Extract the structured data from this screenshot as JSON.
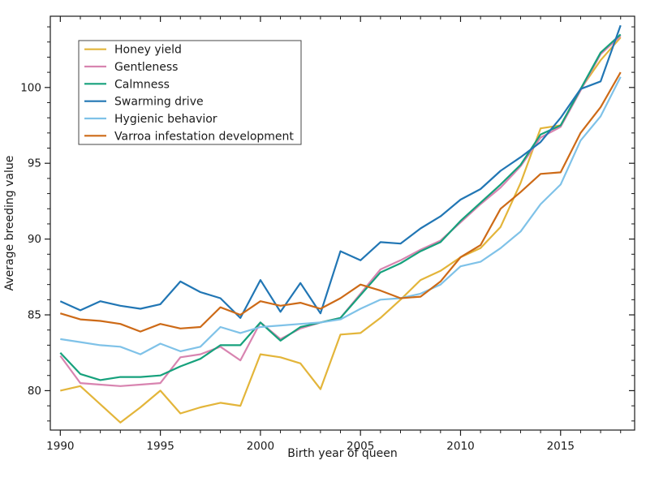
{
  "chart_data": {
    "type": "line",
    "title": "",
    "xlabel": "Birth year of queen",
    "ylabel": "Average breeding value",
    "xlim": [
      1989.5,
      2018.7
    ],
    "ylim": [
      77.4,
      104.7
    ],
    "grid": false,
    "legend_position": "upper-left",
    "frame_color": "#1a1a1a",
    "background_color": "#ffffff",
    "xticks_major": [
      1990,
      1995,
      2000,
      2005,
      2010,
      2015
    ],
    "yticks_major": [
      80,
      85,
      90,
      95,
      100
    ],
    "minor_x_step": 1,
    "minor_y_step": 1,
    "x": [
      1990,
      1991,
      1992,
      1993,
      1994,
      1995,
      1996,
      1997,
      1998,
      1999,
      2000,
      2001,
      2002,
      2003,
      2004,
      2005,
      2006,
      2007,
      2008,
      2009,
      2010,
      2011,
      2012,
      2013,
      2014,
      2015,
      2016,
      2017,
      2018
    ],
    "series": [
      {
        "name": "Honey yield",
        "color": "#E3B53A",
        "values": [
          80.0,
          80.3,
          79.1,
          77.9,
          78.9,
          80.0,
          78.5,
          78.9,
          79.2,
          79.0,
          82.4,
          82.2,
          81.8,
          80.1,
          83.7,
          83.8,
          84.8,
          86.0,
          87.3,
          87.9,
          88.8,
          89.4,
          90.8,
          93.7,
          97.3,
          97.5,
          99.9,
          101.8,
          103.3
        ]
      },
      {
        "name": "Gentleness",
        "color": "#D884B0",
        "values": [
          82.3,
          80.5,
          80.4,
          80.3,
          80.4,
          80.5,
          82.2,
          82.4,
          82.9,
          82.0,
          84.5,
          83.4,
          84.1,
          84.5,
          84.8,
          86.4,
          88.0,
          88.6,
          89.3,
          89.9,
          91.1,
          92.3,
          93.4,
          94.8,
          96.7,
          97.4,
          99.8,
          102.2,
          103.4
        ]
      },
      {
        "name": "Calmness",
        "color": "#16A17C",
        "values": [
          82.5,
          81.1,
          80.7,
          80.9,
          80.9,
          81.0,
          81.6,
          82.1,
          83.0,
          83.0,
          84.5,
          83.3,
          84.2,
          84.5,
          84.8,
          86.3,
          87.8,
          88.4,
          89.2,
          89.8,
          91.2,
          92.4,
          93.6,
          94.9,
          96.9,
          97.5,
          99.9,
          102.3,
          103.5
        ]
      },
      {
        "name": "Swarming drive",
        "color": "#2176B4",
        "values": [
          85.9,
          85.3,
          85.9,
          85.6,
          85.4,
          85.7,
          87.2,
          86.5,
          86.1,
          84.8,
          87.3,
          85.2,
          87.1,
          85.1,
          89.2,
          88.6,
          89.8,
          89.7,
          90.7,
          91.5,
          92.6,
          93.3,
          94.5,
          95.4,
          96.4,
          98.0,
          99.9,
          100.4,
          104.1
        ]
      },
      {
        "name": "Hygienic behavior",
        "color": "#7FC2E8",
        "values": [
          83.4,
          83.2,
          83.0,
          82.9,
          82.4,
          83.1,
          82.6,
          82.9,
          84.2,
          83.8,
          84.2,
          84.3,
          84.4,
          84.5,
          84.7,
          85.4,
          86.0,
          86.1,
          86.4,
          87.0,
          88.2,
          88.5,
          89.4,
          90.5,
          92.3,
          93.6,
          96.5,
          98.1,
          100.7
        ]
      },
      {
        "name": "Varroa infestation development",
        "color": "#CD6A17",
        "values": [
          85.1,
          84.7,
          84.6,
          84.4,
          83.9,
          84.4,
          84.1,
          84.2,
          85.5,
          85.0,
          85.9,
          85.6,
          85.8,
          85.4,
          86.1,
          87.0,
          86.6,
          86.1,
          86.2,
          87.2,
          88.8,
          89.6,
          92.0,
          93.1,
          94.3,
          94.4,
          97.0,
          98.7,
          101.0
        ]
      }
    ]
  }
}
